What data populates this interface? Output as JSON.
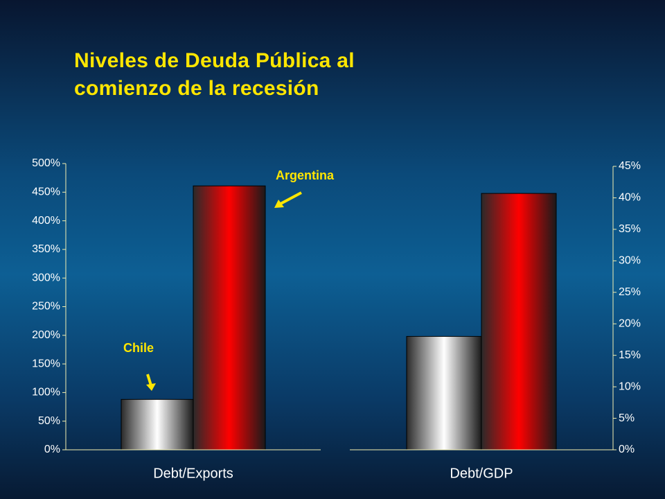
{
  "title": "Niveles de Deuda Pública al comienzo de la recesión",
  "chart_data": [
    {
      "type": "bar",
      "categories": [
        "Debt/Exports"
      ],
      "axis_side": "left",
      "series": [
        {
          "name": "Chile",
          "color": "#ffffff",
          "values": [
            88
          ]
        },
        {
          "name": "Argentina",
          "color": "#ff0000",
          "values": [
            461
          ]
        }
      ],
      "ylim": [
        0,
        500
      ],
      "yticks": [
        {
          "value": 0,
          "label": "0%"
        },
        {
          "value": 50,
          "label": "50%"
        },
        {
          "value": 100,
          "label": "100%"
        },
        {
          "value": 150,
          "label": "150%"
        },
        {
          "value": 200,
          "label": "200%"
        },
        {
          "value": 250,
          "label": "250%"
        },
        {
          "value": 300,
          "label": "300%"
        },
        {
          "value": 350,
          "label": "350%"
        },
        {
          "value": 400,
          "label": "400%"
        },
        {
          "value": 450,
          "label": "450%"
        },
        {
          "value": 500,
          "label": "500%"
        }
      ],
      "annotations": [
        "Chile",
        "Argentina"
      ]
    },
    {
      "type": "bar",
      "categories": [
        "Debt/GDP"
      ],
      "axis_side": "right",
      "series": [
        {
          "name": "Chile",
          "color": "#ffffff",
          "values": [
            18
          ]
        },
        {
          "name": "Argentina",
          "color": "#ff0000",
          "values": [
            40.7
          ]
        }
      ],
      "ylim": [
        0,
        45
      ],
      "yticks": [
        {
          "value": 0,
          "label": "0%"
        },
        {
          "value": 5,
          "label": "5%"
        },
        {
          "value": 10,
          "label": "10%"
        },
        {
          "value": 15,
          "label": "15%"
        },
        {
          "value": 20,
          "label": "20%"
        },
        {
          "value": 25,
          "label": "25%"
        },
        {
          "value": 30,
          "label": "30%"
        },
        {
          "value": 35,
          "label": "35%"
        },
        {
          "value": 40,
          "label": "40%"
        },
        {
          "value": 45,
          "label": "45%"
        }
      ]
    }
  ]
}
